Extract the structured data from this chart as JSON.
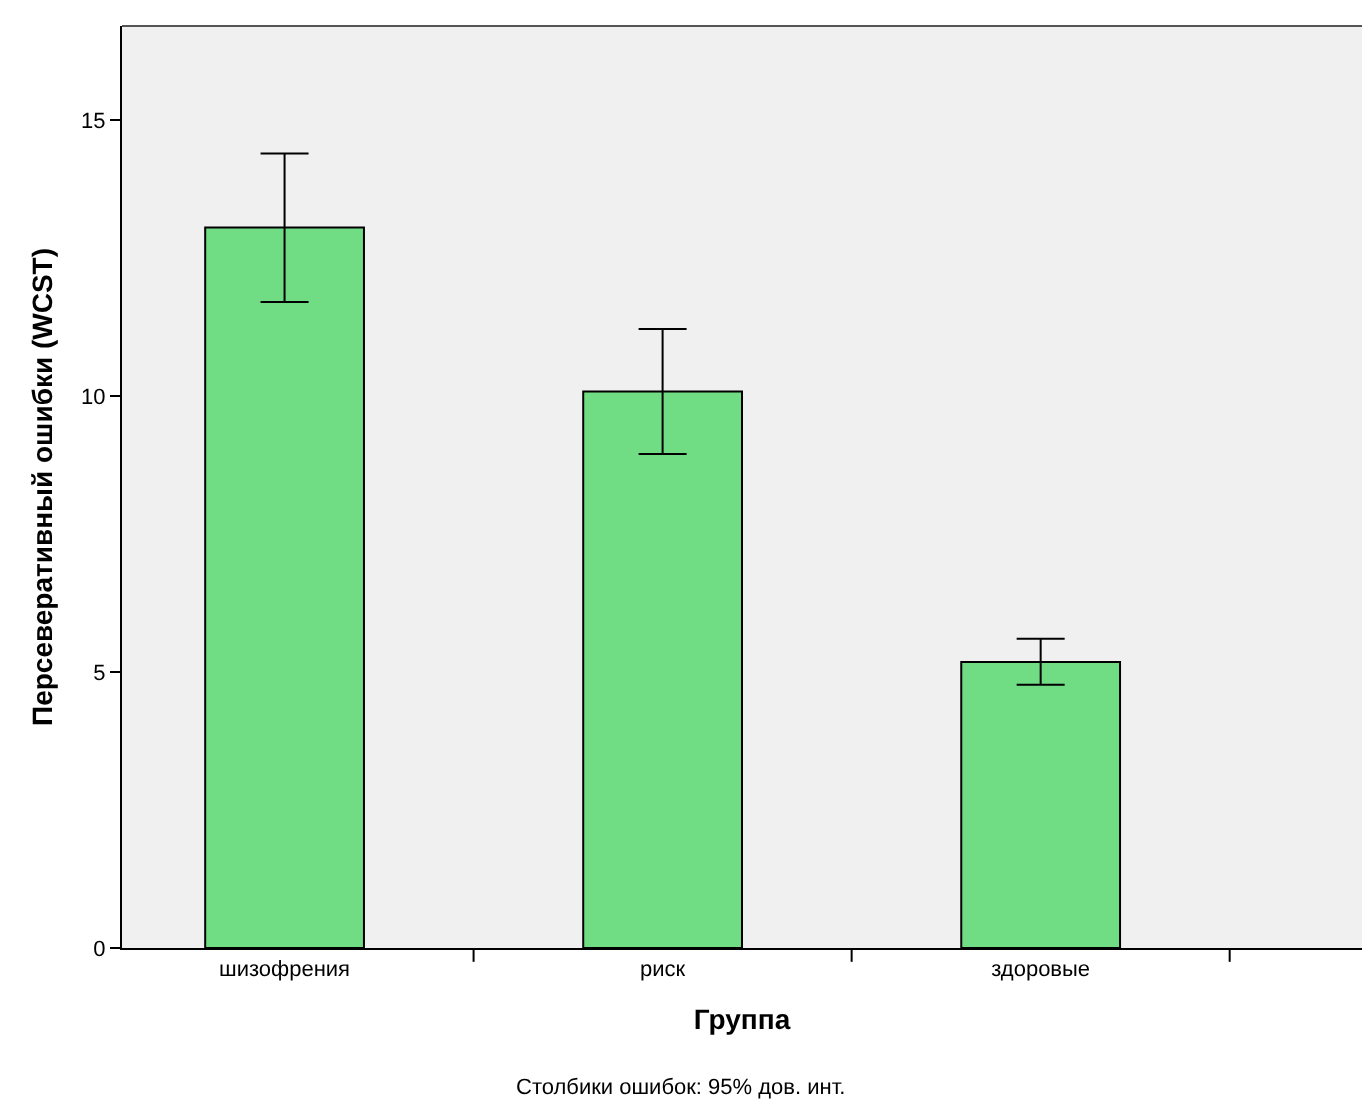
{
  "chart_data": {
    "type": "bar",
    "categories": [
      "шизофрения",
      "риск",
      "здоровые"
    ],
    "values": [
      13.05,
      10.08,
      5.18
    ],
    "errors": [
      [
        11.7,
        14.39
      ],
      [
        8.95,
        11.21
      ],
      [
        4.77,
        5.6
      ]
    ],
    "color": "#70dc84",
    "xlabel": "Группа",
    "ylabel": "Персеверативный ошибки (WCST)",
    "ylim": [
      0,
      16.7
    ],
    "yticks": [
      0,
      5,
      10,
      15
    ],
    "grid": false,
    "annotations": [
      "Столбики ошибок: 95% дов. инт."
    ]
  }
}
